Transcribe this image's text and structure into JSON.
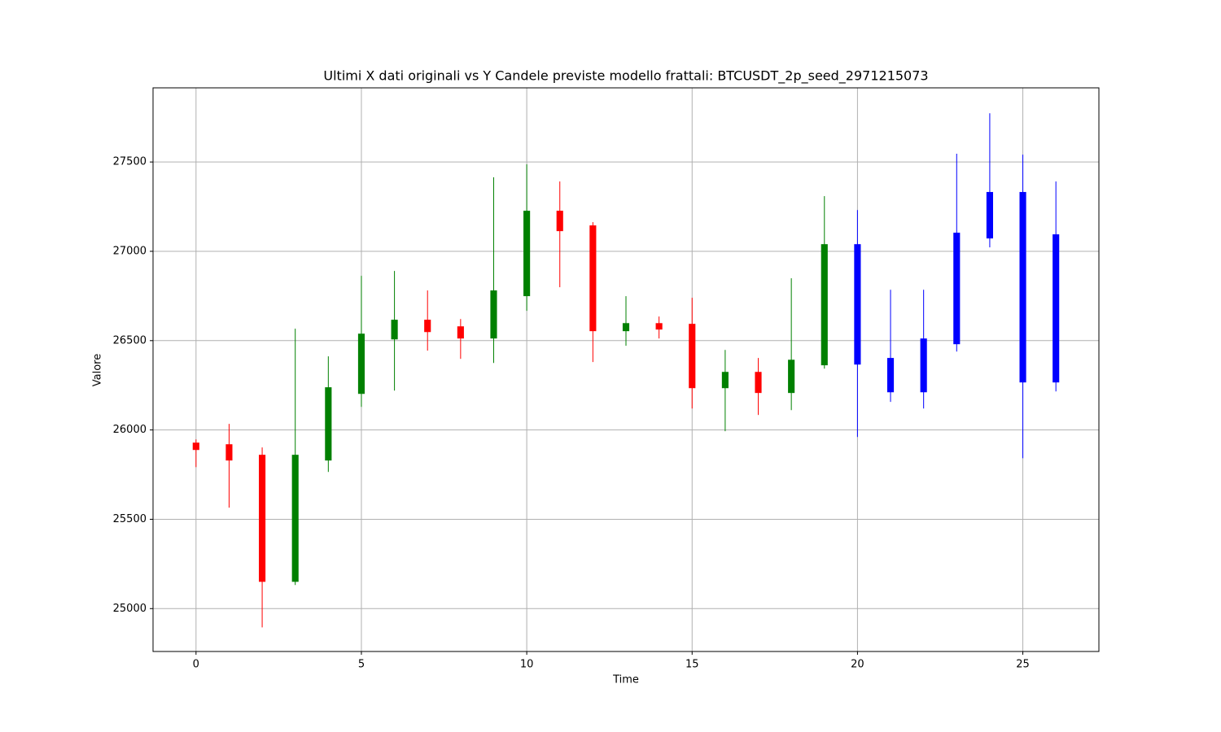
{
  "chart_data": {
    "type": "candlestick",
    "title": "Ultimi X dati originali vs Y Candele previste modello frattali: BTCUSDT_2p_seed_2971215073",
    "x_label": "Time",
    "y_label": "Valore",
    "x": [
      0,
      1,
      2,
      3,
      4,
      5,
      6,
      7,
      8,
      9,
      10,
      11,
      12,
      13,
      14,
      15,
      16,
      17,
      18,
      19,
      20,
      21,
      22,
      23,
      24,
      25,
      26
    ],
    "open": [
      25929,
      25920,
      25861,
      25150,
      25829,
      26202,
      26507,
      26617,
      26580,
      26512,
      26749,
      27227,
      27145,
      26553,
      26598,
      26594,
      26234,
      26325,
      26207,
      26362,
      27040,
      26403,
      26211,
      26480,
      27072,
      27332,
      26266
    ],
    "high": [
      25947,
      26034,
      25902,
      26567,
      26412,
      26863,
      26890,
      26781,
      26621,
      27414,
      27487,
      27391,
      27163,
      26749,
      26635,
      26740,
      26448,
      26403,
      26849,
      27309,
      27231,
      26785,
      26785,
      27546,
      27773,
      27541,
      27391
    ],
    "low": [
      25792,
      25565,
      24895,
      25132,
      25765,
      26129,
      26220,
      26444,
      26398,
      26375,
      26667,
      26799,
      26380,
      26471,
      26512,
      26120,
      25993,
      26084,
      26111,
      26343,
      25961,
      26157,
      26120,
      26439,
      27022,
      25842,
      26216
    ],
    "close": [
      25888,
      25829,
      25150,
      25861,
      26239,
      26539,
      26617,
      26548,
      26512,
      26781,
      27227,
      27113,
      26553,
      26598,
      26562,
      26234,
      26325,
      26207,
      26393,
      27040,
      26366,
      26211,
      26512,
      27104,
      27332,
      26266,
      27095
    ],
    "colors": [
      "red",
      "red",
      "red",
      "green",
      "green",
      "green",
      "green",
      "red",
      "red",
      "green",
      "green",
      "red",
      "red",
      "green",
      "red",
      "red",
      "green",
      "red",
      "green",
      "green",
      "blue",
      "blue",
      "blue",
      "blue",
      "blue",
      "blue",
      "blue"
    ],
    "xlim": [
      -1.3,
      27.3
    ],
    "ylim": [
      24760,
      27915
    ],
    "xticks": [
      0,
      5,
      10,
      15,
      20,
      25
    ],
    "yticks": [
      25000,
      25500,
      26000,
      26500,
      27000,
      27500
    ],
    "grid": true
  }
}
